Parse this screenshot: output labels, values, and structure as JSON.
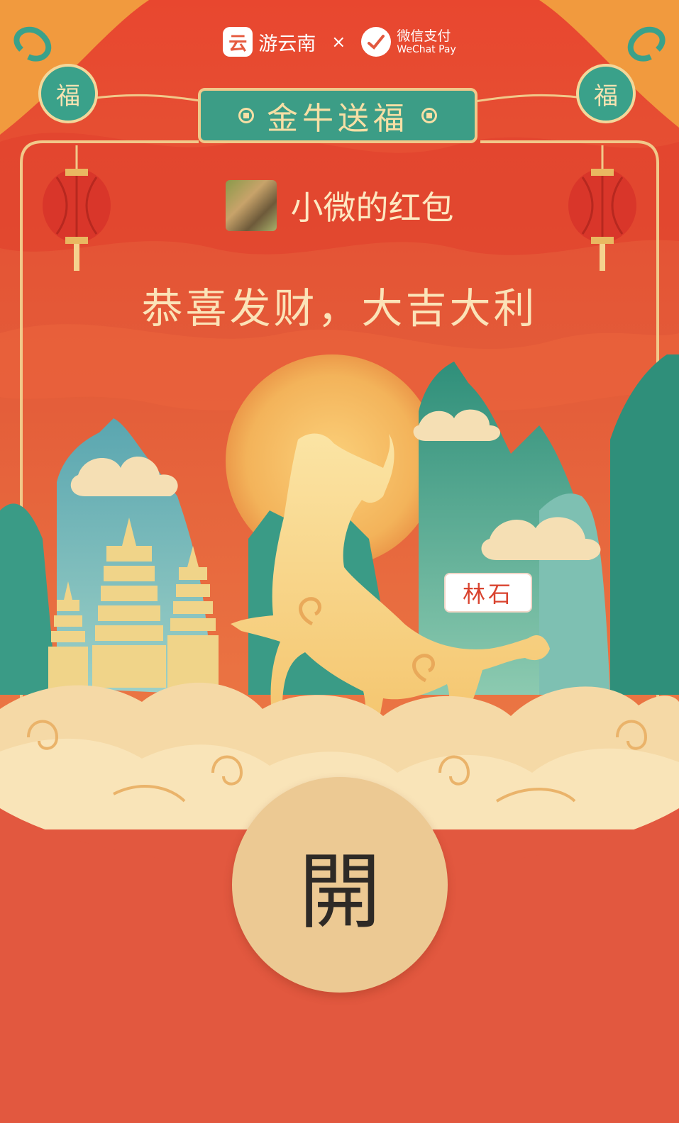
{
  "brand": {
    "partner_name": "游云南",
    "partner_logo_glyph": "云",
    "separator": "×",
    "wechat_pay_cn": "微信支付",
    "wechat_pay_en": "WeChat Pay"
  },
  "decor": {
    "fu_left": "福",
    "fu_right": "福",
    "stamp_text": "林石"
  },
  "banner": {
    "title": "金牛送福"
  },
  "sender": {
    "name": "小微的红包"
  },
  "greeting": "恭喜发财，大吉大利",
  "open_button": {
    "label": "開"
  },
  "colors": {
    "envelope_red": "#e2583f",
    "accent_gold": "#ecc993",
    "accent_teal": "#3c9d86"
  }
}
